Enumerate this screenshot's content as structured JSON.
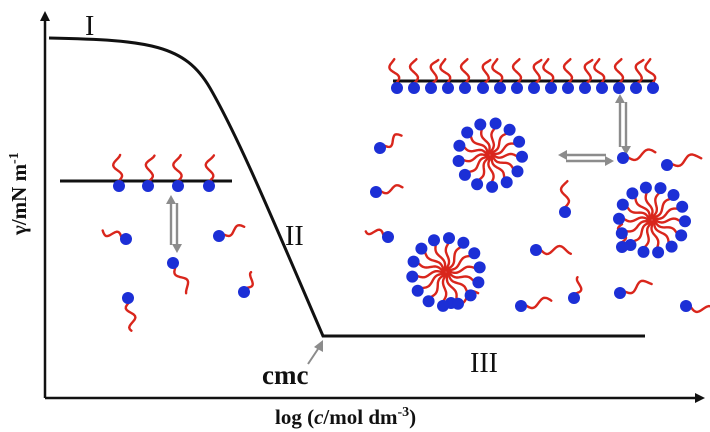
{
  "labels": {
    "region_1": "I",
    "region_2": "II",
    "region_3": "III",
    "cmc": "cmc"
  },
  "axes": {
    "y_label": "γ/mN m",
    "y_label_sup": "-1",
    "x_label_prefix": "log (",
    "x_label_italic": "c",
    "x_label_unit": "/mol dm",
    "x_label_sup": "-3",
    "x_label_suffix": ")"
  },
  "colors": {
    "tail": "#d9261c",
    "head": "#1c2fd6",
    "curve": "#111111",
    "equilibrium_arrow": "#8c8c8c"
  }
}
